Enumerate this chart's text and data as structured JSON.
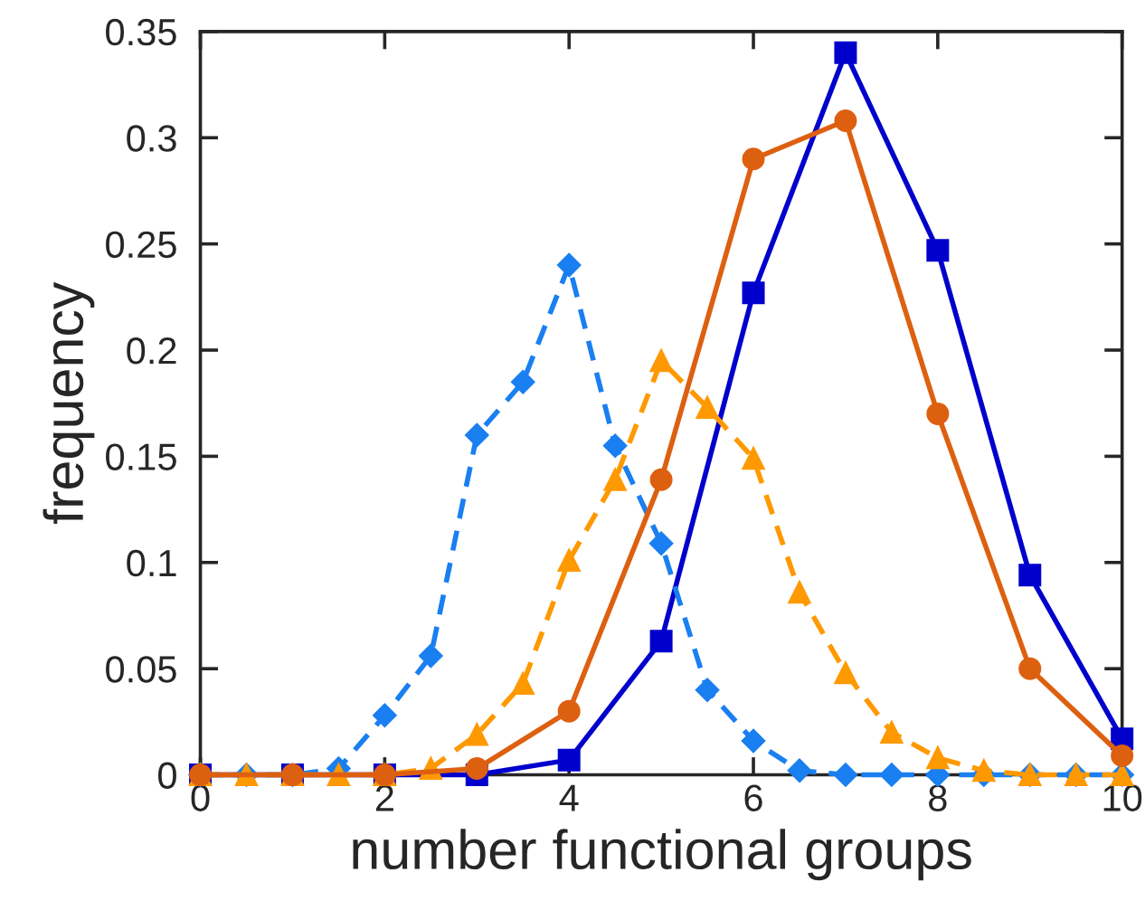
{
  "chart_data": {
    "type": "line",
    "xlabel": "number functional groups",
    "ylabel": "frequency",
    "xlim": [
      0,
      10
    ],
    "xticks": [
      0,
      2,
      4,
      6,
      8,
      10
    ],
    "ylim": [
      0,
      0.35
    ],
    "yticks": [
      0,
      0.05,
      0.1,
      0.15,
      0.2,
      0.25,
      0.3,
      0.35
    ],
    "grid": false,
    "legend": false,
    "series": [
      {
        "color": "#0000cc",
        "marker": "square",
        "line_style": "solid",
        "x": [
          0,
          1,
          2,
          3,
          4,
          5,
          6,
          7,
          8,
          9,
          10
        ],
        "values": [
          0,
          0,
          0,
          0,
          0.007,
          0.063,
          0.227,
          0.34,
          0.247,
          0.094,
          0.017
        ]
      },
      {
        "color": "#1a7ff0",
        "marker": "diamond",
        "line_style": "dashed",
        "x": [
          0,
          0.5,
          1,
          1.5,
          2,
          2.5,
          3,
          3.5,
          4,
          4.5,
          5,
          5.5,
          6,
          6.5,
          7,
          7.5,
          8,
          8.5,
          9,
          9.5,
          10
        ],
        "values": [
          0,
          0,
          0,
          0.003,
          0.028,
          0.056,
          0.16,
          0.185,
          0.24,
          0.155,
          0.109,
          0.04,
          0.016,
          0.002,
          0,
          0,
          0,
          0,
          0,
          0,
          0
        ]
      },
      {
        "color": "#ff9900",
        "marker": "triangle",
        "line_style": "dashed",
        "x": [
          0,
          0.5,
          1,
          1.5,
          2,
          2.5,
          3,
          3.5,
          4,
          4.5,
          5,
          5.5,
          6,
          6.5,
          7,
          7.5,
          8,
          8.5,
          9,
          9.5,
          10
        ],
        "values": [
          0,
          0,
          0,
          0,
          0,
          0.003,
          0.019,
          0.043,
          0.101,
          0.139,
          0.195,
          0.173,
          0.149,
          0.086,
          0.048,
          0.02,
          0.008,
          0.002,
          0,
          0,
          0
        ]
      },
      {
        "color": "#dd6010",
        "marker": "circle",
        "line_style": "solid",
        "x": [
          0,
          1,
          2,
          3,
          4,
          5,
          6,
          7,
          8,
          9,
          10
        ],
        "values": [
          0,
          0,
          0,
          0.003,
          0.03,
          0.139,
          0.29,
          0.308,
          0.17,
          0.05,
          0.009
        ]
      }
    ]
  }
}
